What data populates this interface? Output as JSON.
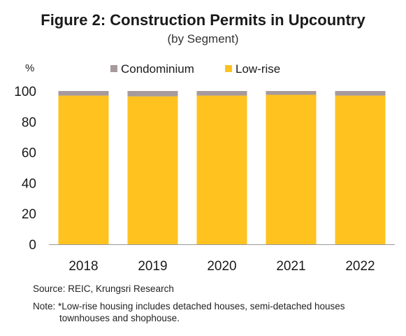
{
  "title": "Figure 2: Construction  Permits in Upcountry",
  "subtitle": "(by Segment)",
  "source": "Source: REIC, Krungsri Research",
  "note": {
    "line1": "Note: *Low-rise housing  includes detached houses, semi-detached houses",
    "line2": "townhouses and shophouse."
  },
  "colors": {
    "condominium": "#a79a9c",
    "lowrise": "#ffc21f",
    "axis": "#999999"
  },
  "chart_data": {
    "type": "bar",
    "stacked": true,
    "title": "Figure 2: Construction  Permits in Upcountry",
    "subtitle": "(by Segment)",
    "ylabel": "%",
    "xlabel": "",
    "ylim": [
      0,
      100
    ],
    "yticks": [
      0,
      20,
      40,
      60,
      80,
      100
    ],
    "categories": [
      "2018",
      "2019",
      "2020",
      "2021",
      "2022"
    ],
    "series": [
      {
        "name": "Low-rise",
        "values": [
          97,
          96.5,
          97,
          97.5,
          97
        ]
      },
      {
        "name": "Condominium",
        "values": [
          3,
          3.5,
          3,
          2.5,
          3
        ]
      }
    ],
    "legend": {
      "position": "top",
      "order": [
        "Condominium",
        "Low-rise"
      ]
    },
    "grid": false
  }
}
